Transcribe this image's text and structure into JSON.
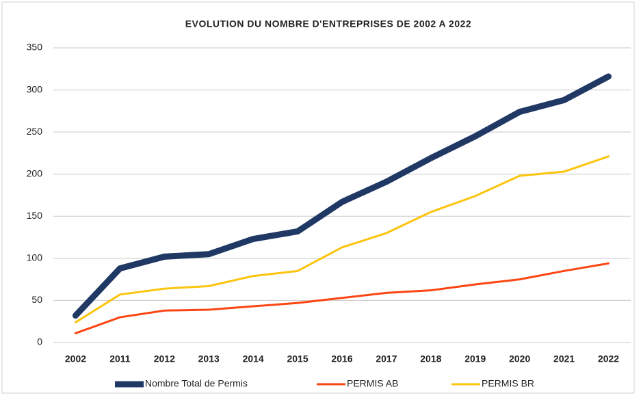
{
  "chart_data": {
    "type": "line",
    "title": "EVOLUTION DU NOMBRE D'ENTREPRISES DE 2002 A 2022",
    "categories": [
      "2002",
      "2011",
      "2012",
      "2013",
      "2014",
      "2015",
      "2016",
      "2017",
      "2018",
      "2019",
      "2020",
      "2021",
      "2022"
    ],
    "series": [
      {
        "name": "Nombre Total de Permis",
        "color": "#1f3864",
        "values": [
          32,
          88,
          102,
          105,
          123,
          132,
          167,
          191,
          219,
          245,
          274,
          288,
          316
        ]
      },
      {
        "name": "PERMIS AB",
        "color": "#fc4513",
        "values": [
          11,
          30,
          38,
          39,
          43,
          47,
          53,
          59,
          62,
          69,
          75,
          85,
          94
        ]
      },
      {
        "name": "PERMIS BR",
        "color": "#fcc40c",
        "values": [
          24,
          57,
          64,
          67,
          79,
          85,
          113,
          130,
          155,
          174,
          198,
          203,
          221
        ]
      }
    ],
    "ylim": [
      0,
      350
    ],
    "yticks": [
      0,
      50,
      100,
      150,
      200,
      250,
      300,
      350
    ],
    "grid": true,
    "legend": "bottom"
  }
}
